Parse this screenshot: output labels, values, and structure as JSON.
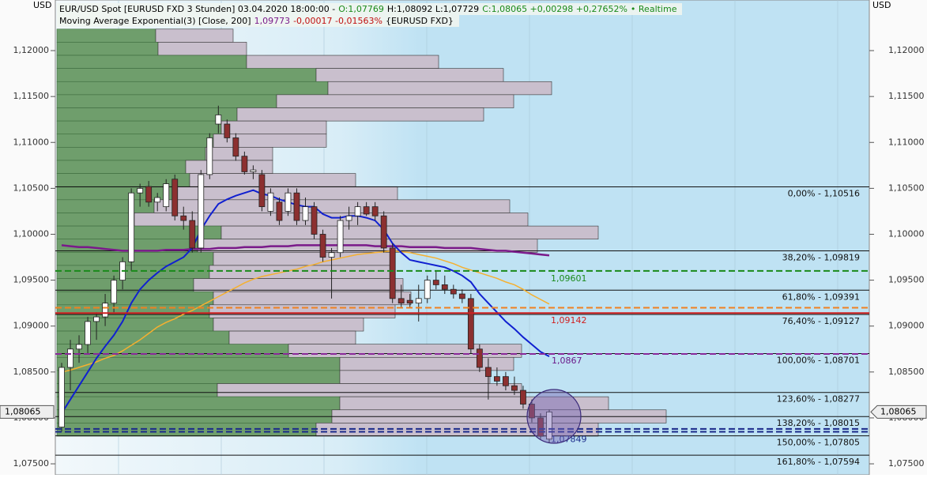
{
  "chart_data": {
    "type": "candlestick",
    "header": {
      "line1": [
        {
          "text": "EUR/USD Spot [EURUSD FXD 3 Stunden] 03.04.2020 18:00:00 -",
          "color": "#000000"
        },
        {
          "text": "O:1,07769",
          "color": "#1a8a1a"
        },
        {
          "text": "H:1,08092 L:1,07729",
          "color": "#000000"
        },
        {
          "text": "C:1,08065 +0,00298 +0,27652%",
          "color": "#1a8a1a"
        },
        {
          "text": "• Realtime",
          "color": "#1a8a1a"
        }
      ],
      "line2": [
        {
          "text": "Moving Average Exponential(3) [Close, 200]",
          "color": "#000000"
        },
        {
          "text": "1,09773",
          "color": "#7a1a8a"
        },
        {
          "text": "-0,00017 -0,01563%",
          "color": "#c01010"
        },
        {
          "text": "{EURUSD FXD}",
          "color": "#000000"
        }
      ]
    },
    "y_unit_left": "USD",
    "y_unit_right": "USD",
    "ylim": [
      1.0738,
      1.12551
    ],
    "yticks": [
      {
        "value": 1.075,
        "label": "1,07500"
      },
      {
        "value": 1.08,
        "label": "1,08000"
      },
      {
        "value": 1.085,
        "label": "1,08500"
      },
      {
        "value": 1.09,
        "label": "1,09000"
      },
      {
        "value": 1.095,
        "label": "1,09500"
      },
      {
        "value": 1.1,
        "label": "1,10000"
      },
      {
        "value": 1.105,
        "label": "1,10500"
      },
      {
        "value": 1.11,
        "label": "1,11000"
      },
      {
        "value": 1.115,
        "label": "1,11500"
      },
      {
        "value": 1.12,
        "label": "1,12000"
      }
    ],
    "last_price": {
      "value": 1.08065,
      "label": "1,08065"
    },
    "up_color": "#ffffff",
    "down_color": "#8c3030",
    "open": [
      1.079,
      1.0855,
      1.0875,
      1.088,
      1.0905,
      1.091,
      1.0925,
      1.095,
      1.097,
      1.1045,
      1.1052,
      1.1035,
      1.103,
      1.106,
      1.102,
      1.1015,
      1.0985,
      1.1065,
      1.112,
      1.112,
      1.1105,
      1.1085,
      1.1068,
      1.1065,
      1.1025,
      1.1035,
      1.1025,
      1.1045,
      1.1015,
      1.103,
      1.1,
      1.0975,
      1.098,
      1.1015,
      1.102,
      1.103,
      1.103,
      1.102,
      1.0985,
      1.093,
      1.0928,
      1.0925,
      1.093,
      1.095,
      1.0945,
      1.094,
      1.0935,
      1.093,
      1.0875,
      1.0855,
      1.0845,
      1.0845,
      1.0835,
      1.083,
      1.0815,
      1.08,
      1.07769
    ],
    "high": [
      1.086,
      1.0885,
      1.089,
      1.091,
      1.0915,
      1.0935,
      1.0955,
      1.0975,
      1.105,
      1.1055,
      1.1058,
      1.1045,
      1.106,
      1.1065,
      1.103,
      1.1025,
      1.107,
      1.111,
      1.114,
      1.1125,
      1.111,
      1.109,
      1.1075,
      1.107,
      1.105,
      1.104,
      1.105,
      1.105,
      1.104,
      1.1035,
      1.1005,
      1.0985,
      1.102,
      1.103,
      1.1035,
      1.1035,
      1.1035,
      1.1025,
      1.099,
      1.0945,
      1.0935,
      1.0945,
      1.0955,
      1.096,
      1.0955,
      1.0945,
      1.094,
      1.0935,
      1.088,
      1.0865,
      1.0855,
      1.085,
      1.0845,
      1.0835,
      1.082,
      1.0805,
      1.08092
    ],
    "low": [
      1.0785,
      1.083,
      1.086,
      1.087,
      1.0885,
      1.09,
      1.0915,
      1.094,
      1.096,
      1.103,
      1.103,
      1.1025,
      1.1025,
      1.1015,
      1.1005,
      1.098,
      1.098,
      1.106,
      1.111,
      1.11,
      1.108,
      1.1065,
      1.106,
      1.1025,
      1.102,
      1.101,
      1.102,
      1.101,
      1.101,
      1.0995,
      1.097,
      1.093,
      1.0975,
      1.1005,
      1.101,
      1.102,
      1.1015,
      1.098,
      1.0925,
      1.092,
      1.092,
      1.0905,
      1.0925,
      1.094,
      1.0935,
      1.093,
      1.0925,
      1.087,
      1.085,
      1.082,
      1.0835,
      1.083,
      1.0825,
      1.081,
      1.0795,
      1.0777,
      1.07729
    ],
    "close": [
      1.0855,
      1.0875,
      1.088,
      1.0905,
      1.091,
      1.0925,
      1.095,
      1.097,
      1.1045,
      1.105,
      1.1035,
      1.104,
      1.1055,
      1.102,
      1.1015,
      1.0985,
      1.1065,
      1.1105,
      1.113,
      1.1105,
      1.1085,
      1.1068,
      1.107,
      1.103,
      1.1045,
      1.1015,
      1.1045,
      1.1015,
      1.103,
      1.1,
      1.0975,
      1.098,
      1.1015,
      1.102,
      1.103,
      1.1022,
      1.102,
      1.0985,
      1.093,
      1.0925,
      1.0925,
      1.093,
      1.095,
      1.0945,
      1.094,
      1.0935,
      1.093,
      1.0875,
      1.0855,
      1.0845,
      1.084,
      1.0835,
      1.083,
      1.0815,
      1.08,
      1.078,
      1.08065
    ],
    "lines": [
      {
        "color": "#7a1a8a",
        "width": 2.5,
        "values": [
          1.0988,
          1.0987,
          1.0986,
          1.0986,
          1.0985,
          1.0984,
          1.0983,
          1.0982,
          1.0982,
          1.0982,
          1.0982,
          1.0982,
          1.0983,
          1.0983,
          1.0983,
          1.0984,
          1.0984,
          1.0984,
          1.0985,
          1.0985,
          1.0985,
          1.0986,
          1.0986,
          1.0986,
          1.0987,
          1.0987,
          1.0987,
          1.0988,
          1.0988,
          1.0988,
          1.0988,
          1.0988,
          1.0988,
          1.0988,
          1.0988,
          1.0988,
          1.0987,
          1.0987,
          1.0987,
          1.0987,
          1.0986,
          1.0986,
          1.0986,
          1.0986,
          1.0985,
          1.0985,
          1.0985,
          1.0985,
          1.0984,
          1.0983,
          1.0982,
          1.0982,
          1.0981,
          1.098,
          1.0979,
          1.0978,
          1.0977
        ]
      },
      {
        "color": "#f5b030",
        "width": 1.5,
        "values": [
          1.085,
          1.0852,
          1.0855,
          1.0858,
          1.0861,
          1.0865,
          1.0868,
          1.0873,
          1.0879,
          1.0885,
          1.0892,
          1.0899,
          1.0904,
          1.0908,
          1.0913,
          1.0917,
          1.0922,
          1.0927,
          1.0932,
          1.0937,
          1.0942,
          1.0947,
          1.0951,
          1.0954,
          1.0956,
          1.0958,
          1.096,
          1.0962,
          1.0965,
          1.0967,
          1.097,
          1.0972,
          1.0974,
          1.0976,
          1.0978,
          1.0979,
          1.098,
          1.0981,
          1.0982,
          1.0981,
          1.098,
          1.0978,
          1.0976,
          1.0974,
          1.0971,
          1.0968,
          1.0964,
          1.0961,
          1.0958,
          1.0955,
          1.0952,
          1.0948,
          1.0945,
          1.094,
          1.0934,
          1.0929,
          1.0924
        ]
      },
      {
        "color": "#1020d0",
        "width": 2,
        "end_label": "1,0867",
        "values": [
          1.0805,
          1.082,
          1.0835,
          1.085,
          1.0865,
          1.0878,
          1.089,
          1.0905,
          1.0925,
          1.094,
          1.095,
          1.0958,
          1.0965,
          1.097,
          1.0975,
          1.0985,
          1.1005,
          1.102,
          1.1033,
          1.1038,
          1.1042,
          1.1045,
          1.1048,
          1.1044,
          1.1042,
          1.1038,
          1.1035,
          1.1032,
          1.103,
          1.103,
          1.1022,
          1.1018,
          1.1018,
          1.102,
          1.102,
          1.1018,
          1.1015,
          1.1005,
          1.099,
          1.098,
          1.0972,
          1.097,
          1.0968,
          1.0966,
          1.0964,
          1.096,
          1.0955,
          1.0948,
          1.0935,
          1.0925,
          1.0915,
          1.0905,
          1.0897,
          1.0888,
          1.088,
          1.0872,
          1.0867
        ]
      }
    ],
    "volume_profile": {
      "prices": [
        1.12163,
        1.1202,
        1.11877,
        1.11734,
        1.11591,
        1.11448,
        1.11305,
        1.11162,
        1.11019,
        1.10876,
        1.10733,
        1.1059,
        1.10447,
        1.10304,
        1.10161,
        1.10018,
        1.09875,
        1.09732,
        1.09589,
        1.09446,
        1.09303,
        1.0916,
        1.09017,
        1.08874,
        1.08731,
        1.08588,
        1.08445,
        1.08302,
        1.08159,
        1.08016,
        1.07873
      ],
      "up": [
        125,
        128,
        240,
        328,
        343,
        278,
        228,
        208,
        198,
        188,
        163,
        168,
        148,
        123,
        98,
        208,
        178,
        198,
        193,
        173,
        198,
        193,
        198,
        218,
        293,
        358,
        358,
        203,
        358,
        348,
        328
      ],
      "down": [
        98,
        112,
        243,
        237,
        283,
        300,
        312,
        133,
        143,
        85,
        110,
        210,
        283,
        450,
        498,
        477,
        430,
        228,
        235,
        265,
        250,
        235,
        190,
        160,
        295,
        220,
        190,
        385,
        340,
        423,
        357
      ]
    },
    "fib_levels": [
      {
        "value": 1.10516,
        "label": "0,00% - 1,10516"
      },
      {
        "value": 1.09819,
        "label": "38,20% - 1,09819"
      },
      {
        "value": 1.09391,
        "label": "61,80% - 1,09391"
      },
      {
        "value": 1.09127,
        "label": "76,40% - 1,09127"
      },
      {
        "value": 1.08701,
        "label": "100,00% - 1,08701"
      },
      {
        "value": 1.08277,
        "label": "123,60% - 1,08277"
      },
      {
        "value": 1.08015,
        "label": "138,20% - 1,08015"
      },
      {
        "value": 1.07805,
        "label": "150,00% - 1,07805"
      },
      {
        "value": 1.07594,
        "label": "161,80% - 1,07594"
      }
    ],
    "levels": [
      {
        "value": 1.09601,
        "label": "1,09601",
        "color": "#1a8a1a",
        "style": "dashed"
      },
      {
        "value": 1.092,
        "color": "#f08020",
        "style": "dashed"
      },
      {
        "value": 1.09142,
        "label": "1,09142",
        "color": "#d02020",
        "style": "solid"
      },
      {
        "value": 1.08696,
        "color": "#8a2a9a",
        "style": "dashed"
      },
      {
        "value": 1.0788,
        "color": "#1a2a8a",
        "style": "dashed"
      },
      {
        "value": 1.07849,
        "label": "1,07849",
        "color": "#1a2a8a",
        "style": "dashed"
      }
    ]
  }
}
